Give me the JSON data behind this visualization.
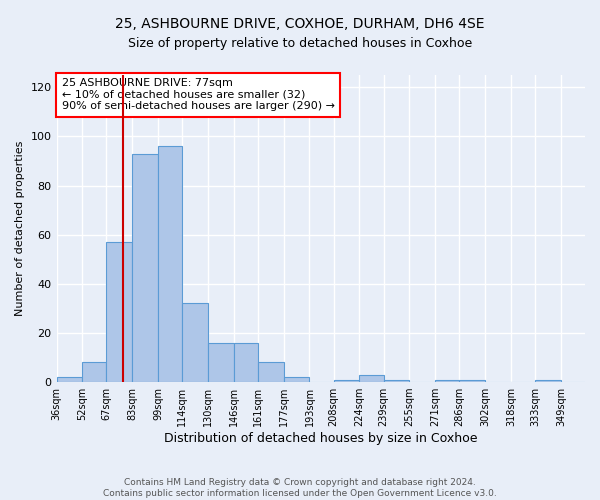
{
  "title1": "25, ASHBOURNE DRIVE, COXHOE, DURHAM, DH6 4SE",
  "title2": "Size of property relative to detached houses in Coxhoe",
  "xlabel": "Distribution of detached houses by size in Coxhoe",
  "ylabel": "Number of detached properties",
  "bar_labels": [
    "36sqm",
    "52sqm",
    "67sqm",
    "83sqm",
    "99sqm",
    "114sqm",
    "130sqm",
    "146sqm",
    "161sqm",
    "177sqm",
    "193sqm",
    "208sqm",
    "224sqm",
    "239sqm",
    "255sqm",
    "271sqm",
    "286sqm",
    "302sqm",
    "318sqm",
    "333sqm",
    "349sqm"
  ],
  "bar_values": [
    2,
    8,
    57,
    93,
    96,
    32,
    16,
    16,
    8,
    2,
    0,
    1,
    3,
    1,
    0,
    1,
    1,
    0,
    0,
    1,
    0
  ],
  "bar_color": "#aec6e8",
  "bar_edge_color": "#5b9bd5",
  "background_color": "#e8eef8",
  "grid_color": "#ffffff",
  "annotation_text": "25 ASHBOURNE DRIVE: 77sqm\n← 10% of detached houses are smaller (32)\n90% of semi-detached houses are larger (290) →",
  "vline_x": 77,
  "vline_color": "#cc0000",
  "ylim": [
    0,
    125
  ],
  "yticks": [
    0,
    20,
    40,
    60,
    80,
    100,
    120
  ],
  "footnote": "Contains HM Land Registry data © Crown copyright and database right 2024.\nContains public sector information licensed under the Open Government Licence v3.0.",
  "bin_edges": [
    36,
    52,
    67,
    83,
    99,
    114,
    130,
    146,
    161,
    177,
    193,
    208,
    224,
    239,
    255,
    271,
    286,
    302,
    318,
    333,
    349,
    364
  ]
}
